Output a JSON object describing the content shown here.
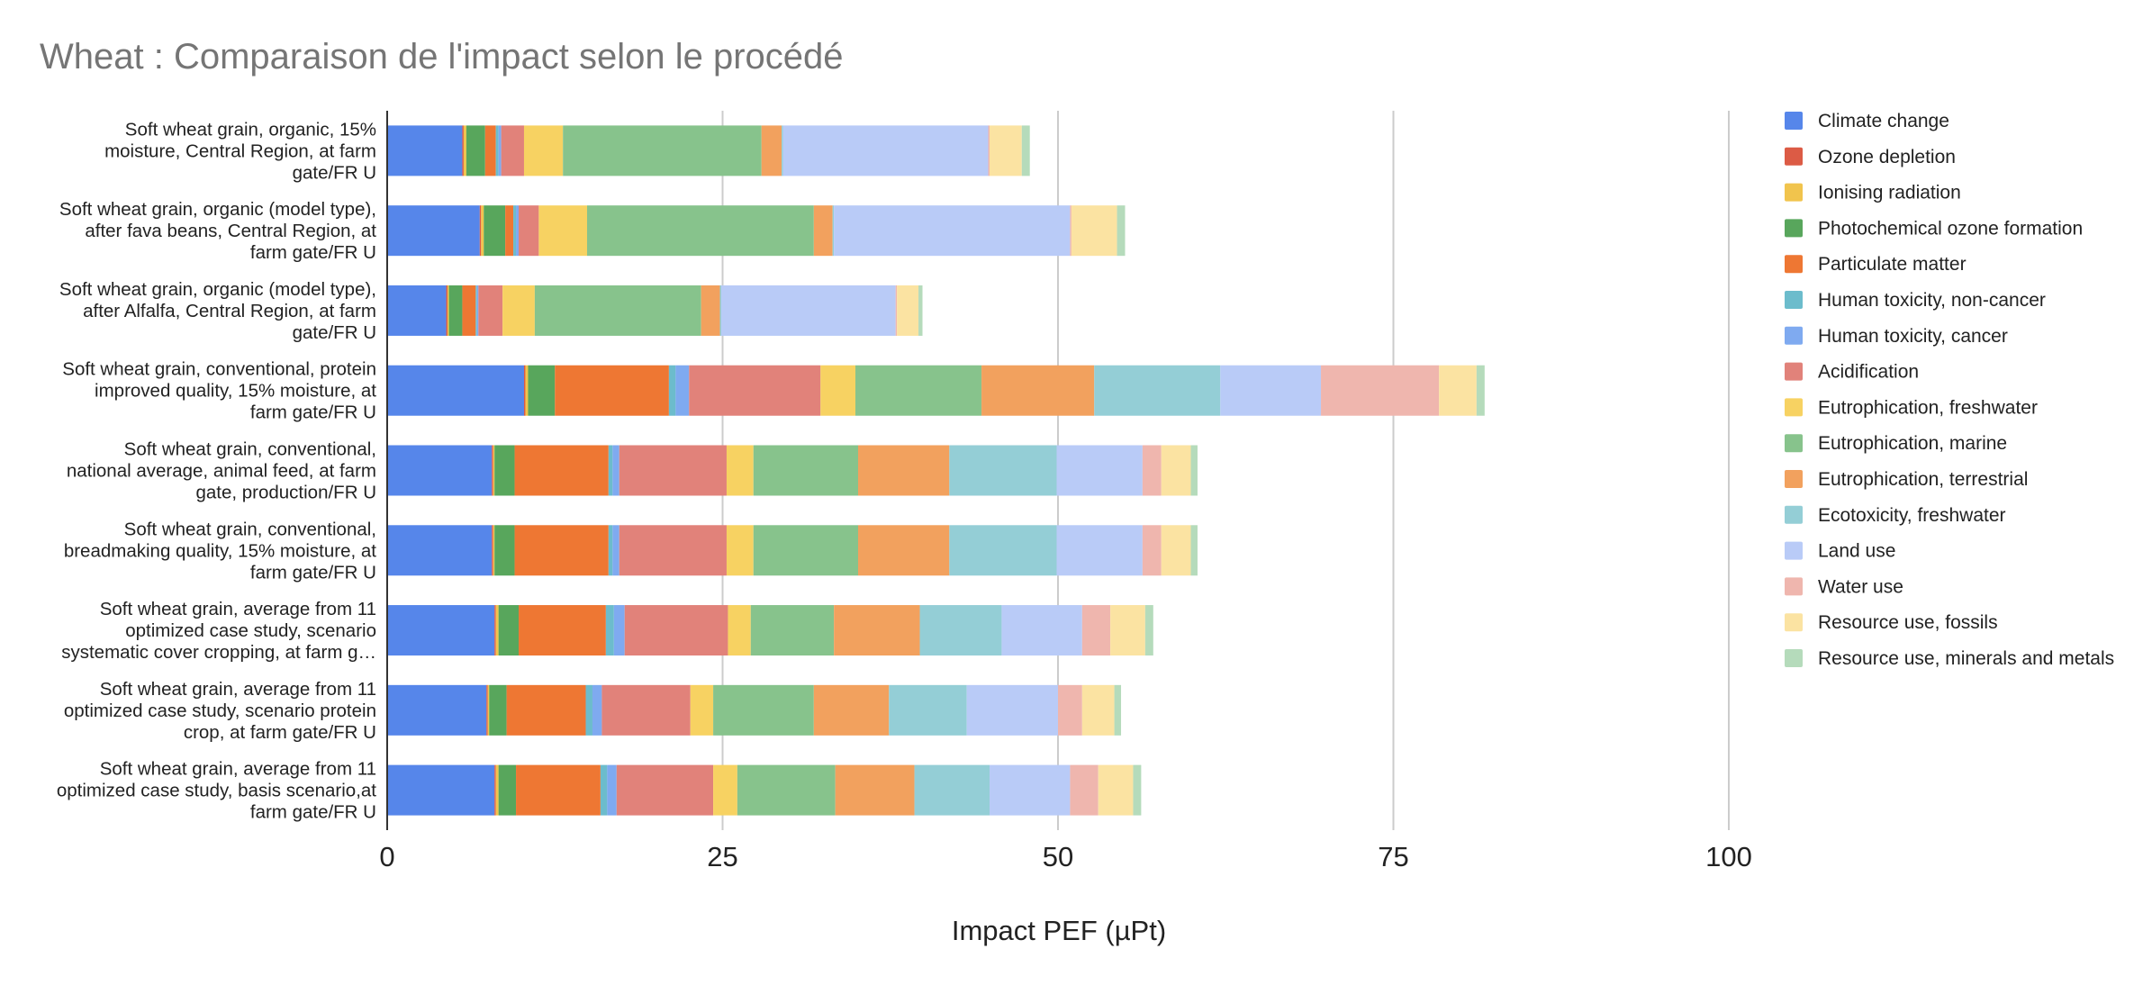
{
  "chart_data": {
    "type": "bar",
    "orientation": "horizontal",
    "stacked": true,
    "title": "Wheat : Comparaison de l'impact selon le procédé",
    "xlabel": "Impact PEF (µPt)",
    "ylabel": "",
    "xlim": [
      0,
      100
    ],
    "xticks": [
      "0",
      "25",
      "50",
      "75",
      "100"
    ],
    "grid": true,
    "legend_position": "right",
    "categories": [
      "Soft wheat grain, organic, 15% moisture, Central Region, at farm gate/FR U",
      "Soft wheat grain, organic (model type), after fava beans, Central Region, at farm gate/FR U",
      "Soft wheat grain, organic (model type), after Alfalfa, Central Region, at farm gate/FR U",
      "Soft wheat grain, conventional, protein improved quality, 15% moisture, at farm gate/FR U",
      "Soft wheat grain, conventional, national average, animal feed, at farm gate, production/FR U",
      "Soft wheat grain, conventional, breadmaking quality, 15% moisture, at farm gate/FR U",
      "Soft wheat grain, average from 11 optimized case study, scenario systematic cover cropping, at farm g…",
      "Soft wheat grain, average from 11 optimized case study, scenario protein crop, at farm gate/FR U",
      "Soft wheat grain, average from 11 optimized case study, basis scenario,at farm gate/FR U"
    ],
    "category_lines": [
      [
        "Soft wheat grain, organic, 15%",
        "moisture, Central Region, at farm",
        "gate/FR U"
      ],
      [
        "Soft wheat grain, organic (model type),",
        "after fava beans, Central Region, at",
        "farm gate/FR U"
      ],
      [
        "Soft wheat grain, organic (model type),",
        "after Alfalfa, Central Region, at farm",
        "gate/FR U"
      ],
      [
        "Soft wheat grain, conventional, protein",
        "improved quality, 15% moisture, at",
        "farm gate/FR U"
      ],
      [
        "Soft wheat grain, conventional,",
        "national average, animal feed, at farm",
        "gate, production/FR U"
      ],
      [
        "Soft wheat grain, conventional,",
        "breadmaking quality, 15% moisture, at",
        "farm gate/FR U"
      ],
      [
        "Soft wheat grain, average from 11",
        "optimized case study, scenario",
        "systematic cover cropping, at farm g…"
      ],
      [
        "Soft wheat grain, average from 11",
        "optimized case study, scenario protein",
        "crop, at farm gate/FR U"
      ],
      [
        "Soft wheat grain, average from 11",
        "optimized case study, basis scenario,at",
        "farm gate/FR U"
      ]
    ],
    "series": [
      {
        "name": "Climate change",
        "color": "#5686ea",
        "values": [
          5.6,
          6.9,
          4.4,
          10.2,
          7.8,
          7.8,
          8.0,
          7.4,
          8.0
        ]
      },
      {
        "name": "Ozone depletion",
        "color": "#dc5b45",
        "values": [
          0.1,
          0.1,
          0.1,
          0.1,
          0.1,
          0.1,
          0.1,
          0.1,
          0.1
        ]
      },
      {
        "name": "Ionising radiation",
        "color": "#f1c44d",
        "values": [
          0.2,
          0.2,
          0.1,
          0.2,
          0.1,
          0.1,
          0.2,
          0.1,
          0.2
        ]
      },
      {
        "name": "Photochemical ozone formation",
        "color": "#58a65c",
        "values": [
          1.4,
          1.6,
          1.0,
          2.0,
          1.5,
          1.5,
          1.5,
          1.3,
          1.3
        ]
      },
      {
        "name": "Particulate matter",
        "color": "#ee7733",
        "values": [
          0.8,
          0.6,
          1.0,
          8.5,
          7.0,
          7.0,
          6.5,
          5.9,
          6.3
        ]
      },
      {
        "name": "Human toxicity, non-cancer",
        "color": "#6cbccc",
        "values": [
          0.2,
          0.2,
          0.1,
          0.5,
          0.3,
          0.3,
          0.6,
          0.5,
          0.5
        ]
      },
      {
        "name": "Human toxicity, cancer",
        "color": "#7faaf0",
        "values": [
          0.2,
          0.2,
          0.1,
          1.0,
          0.5,
          0.5,
          0.8,
          0.7,
          0.7
        ]
      },
      {
        "name": "Acidification",
        "color": "#e1827a",
        "values": [
          1.7,
          1.5,
          1.8,
          9.8,
          8.0,
          8.0,
          7.7,
          6.6,
          7.2
        ]
      },
      {
        "name": "Eutrophication, freshwater",
        "color": "#f7d262",
        "values": [
          2.9,
          3.6,
          2.4,
          2.6,
          2.0,
          2.0,
          1.7,
          1.7,
          1.8
        ]
      },
      {
        "name": "Eutrophication, marine",
        "color": "#87c38c",
        "values": [
          14.8,
          16.9,
          12.4,
          9.4,
          7.8,
          7.8,
          6.2,
          7.5,
          7.3
        ]
      },
      {
        "name": "Eutrophication, terrestrial",
        "color": "#f2a15e",
        "values": [
          1.5,
          1.4,
          1.4,
          8.4,
          6.8,
          6.8,
          6.4,
          5.6,
          5.9
        ]
      },
      {
        "name": "Ecotoxicity, freshwater",
        "color": "#94ced6",
        "values": [
          0.1,
          0.1,
          0.1,
          9.4,
          8.0,
          8.0,
          6.1,
          5.8,
          5.6
        ]
      },
      {
        "name": "Land use",
        "color": "#b9cbf7",
        "values": [
          15.3,
          17.6,
          13.0,
          7.5,
          6.4,
          6.4,
          6.0,
          6.8,
          6.0
        ]
      },
      {
        "name": "Water use",
        "color": "#efb6ae",
        "values": [
          0.1,
          0.1,
          0.1,
          8.8,
          1.4,
          1.4,
          2.1,
          1.8,
          2.1
        ]
      },
      {
        "name": "Resource use, fossils",
        "color": "#fbe3a2",
        "values": [
          2.4,
          3.4,
          1.6,
          2.8,
          2.2,
          2.2,
          2.6,
          2.4,
          2.6
        ]
      },
      {
        "name": "Resource use, minerals and metals",
        "color": "#b5dbbb",
        "values": [
          0.6,
          0.6,
          0.3,
          0.6,
          0.5,
          0.5,
          0.6,
          0.5,
          0.6
        ]
      }
    ]
  }
}
